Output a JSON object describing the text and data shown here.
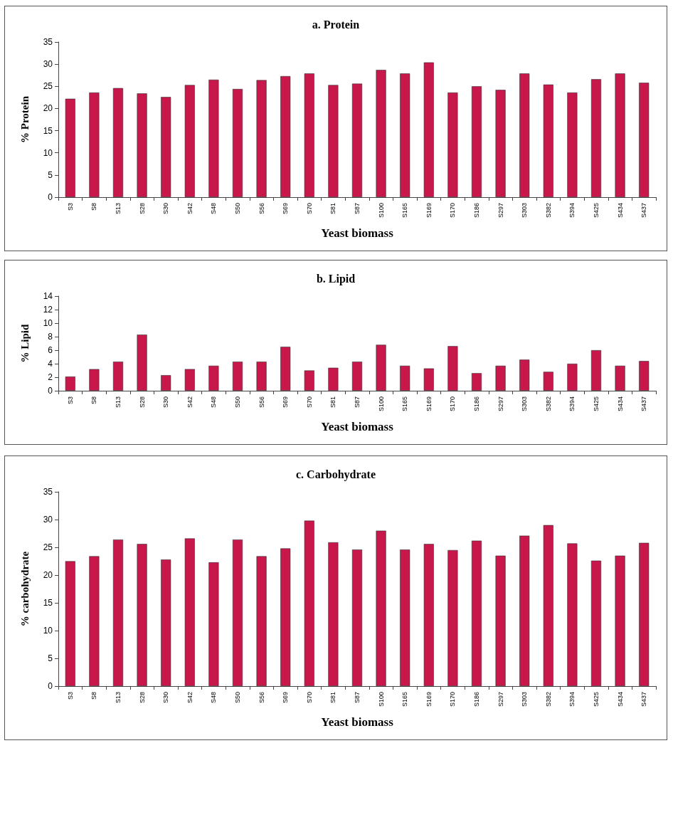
{
  "chart_data": [
    {
      "type": "bar",
      "title": "a. Protein",
      "xlabel": "Yeast biomass",
      "ylabel": "% Protein",
      "categories": [
        "S3",
        "S8",
        "S13",
        "S28",
        "S30",
        "S42",
        "S48",
        "S50",
        "S56",
        "S69",
        "S70",
        "S81",
        "S87",
        "S100",
        "S165",
        "S169",
        "S170",
        "S186",
        "S297",
        "S303",
        "S382",
        "S394",
        "S425",
        "S434",
        "S437"
      ],
      "values": [
        22.2,
        23.6,
        24.6,
        23.4,
        22.6,
        25.3,
        26.5,
        24.4,
        26.4,
        27.3,
        27.9,
        25.3,
        25.6,
        28.7,
        27.9,
        30.4,
        23.6,
        25,
        24.2,
        27.9,
        25.4,
        23.6,
        26.6,
        27.9,
        25.8
      ],
      "color": "#c8174a",
      "ylim": [
        0,
        35
      ],
      "yticks": [
        0,
        5,
        10,
        15,
        20,
        25,
        30,
        35
      ]
    },
    {
      "type": "bar",
      "title": "b. Lipid",
      "xlabel": "Yeast biomass",
      "ylabel": "% Lipid",
      "categories": [
        "S3",
        "S8",
        "S13",
        "S28",
        "S30",
        "S42",
        "S48",
        "S50",
        "S56",
        "S69",
        "S70",
        "S81",
        "S87",
        "S100",
        "S165",
        "S169",
        "S170",
        "S186",
        "S297",
        "S303",
        "S382",
        "S394",
        "S425",
        "S434",
        "S437"
      ],
      "values": [
        2.1,
        3.2,
        4.3,
        8.3,
        2.3,
        3.2,
        3.7,
        4.3,
        4.3,
        6.5,
        3.0,
        3.4,
        4.3,
        6.8,
        3.7,
        3.3,
        6.6,
        2.6,
        3.7,
        4.6,
        2.8,
        4.0,
        6.0,
        3.7,
        4.4
      ],
      "color": "#c8174a",
      "ylim": [
        0,
        14
      ],
      "yticks": [
        0,
        2,
        4,
        6,
        8,
        10,
        12,
        14
      ]
    },
    {
      "type": "bar",
      "title": "c. Carbohydrate",
      "xlabel": "Yeast biomass",
      "ylabel": "% carbohydrate",
      "categories": [
        "S3",
        "S8",
        "S13",
        "S28",
        "S30",
        "S42",
        "S48",
        "S50",
        "S56",
        "S69",
        "S70",
        "S81",
        "S87",
        "S100",
        "S165",
        "S169",
        "S170",
        "S186",
        "S297",
        "S303",
        "S382",
        "S394",
        "S425",
        "S434",
        "S437"
      ],
      "values": [
        22.5,
        23.4,
        26.4,
        25.6,
        22.8,
        26.6,
        22.3,
        26.4,
        23.4,
        24.8,
        29.8,
        25.9,
        24.6,
        28.0,
        24.6,
        25.6,
        24.5,
        26.2,
        23.5,
        27.1,
        29.0,
        25.7,
        22.6,
        23.5,
        25.8
      ],
      "color": "#c8174a",
      "ylim": [
        0,
        35
      ],
      "yticks": [
        0,
        5,
        10,
        15,
        20,
        25,
        30,
        35
      ]
    }
  ]
}
